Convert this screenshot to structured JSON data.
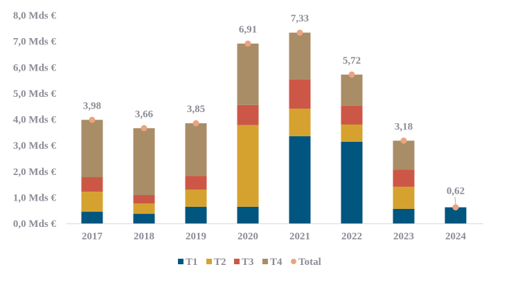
{
  "chart_data": {
    "type": "bar",
    "stacked": true,
    "title": "",
    "xlabel": "",
    "ylabel": "",
    "ylim": [
      0,
      8
    ],
    "yticks": [
      0,
      1,
      2,
      3,
      4,
      5,
      6,
      7,
      8
    ],
    "ytick_labels": [
      "0,0 Mds €",
      "1,0 Mds €",
      "2,0 Mds €",
      "3,0 Mds €",
      "4,0 Mds €",
      "5,0 Mds €",
      "6,0 Mds €",
      "7,0 Mds €",
      "8,0 Mds €"
    ],
    "grid": false,
    "legend_position": "bottom",
    "categories": [
      "2017",
      "2018",
      "2019",
      "2020",
      "2021",
      "2022",
      "2023",
      "2024"
    ],
    "series": [
      {
        "name": "T1",
        "color": "#00567f",
        "values": [
          0.45,
          0.37,
          0.64,
          0.64,
          3.35,
          3.14,
          0.56,
          0.62
        ]
      },
      {
        "name": "T2",
        "color": "#d5a22f",
        "values": [
          0.77,
          0.4,
          0.66,
          3.14,
          1.06,
          0.66,
          0.85,
          0
        ]
      },
      {
        "name": "T3",
        "color": "#cd5746",
        "values": [
          0.56,
          0.32,
          0.53,
          0.77,
          1.12,
          0.72,
          0.66,
          0
        ]
      },
      {
        "name": "T4",
        "color": "#a98d67",
        "values": [
          2.2,
          2.57,
          2.02,
          2.36,
          1.8,
          1.2,
          1.11,
          0
        ]
      }
    ],
    "total": {
      "name": "Total",
      "color": "#eaa47f",
      "values": [
        3.98,
        3.66,
        3.85,
        6.91,
        7.33,
        5.72,
        3.18,
        0.62
      ],
      "labels": [
        "3,98",
        "3,66",
        "3,85",
        "6,91",
        "7,33",
        "5,72",
        "3,18",
        "0,62"
      ]
    }
  }
}
